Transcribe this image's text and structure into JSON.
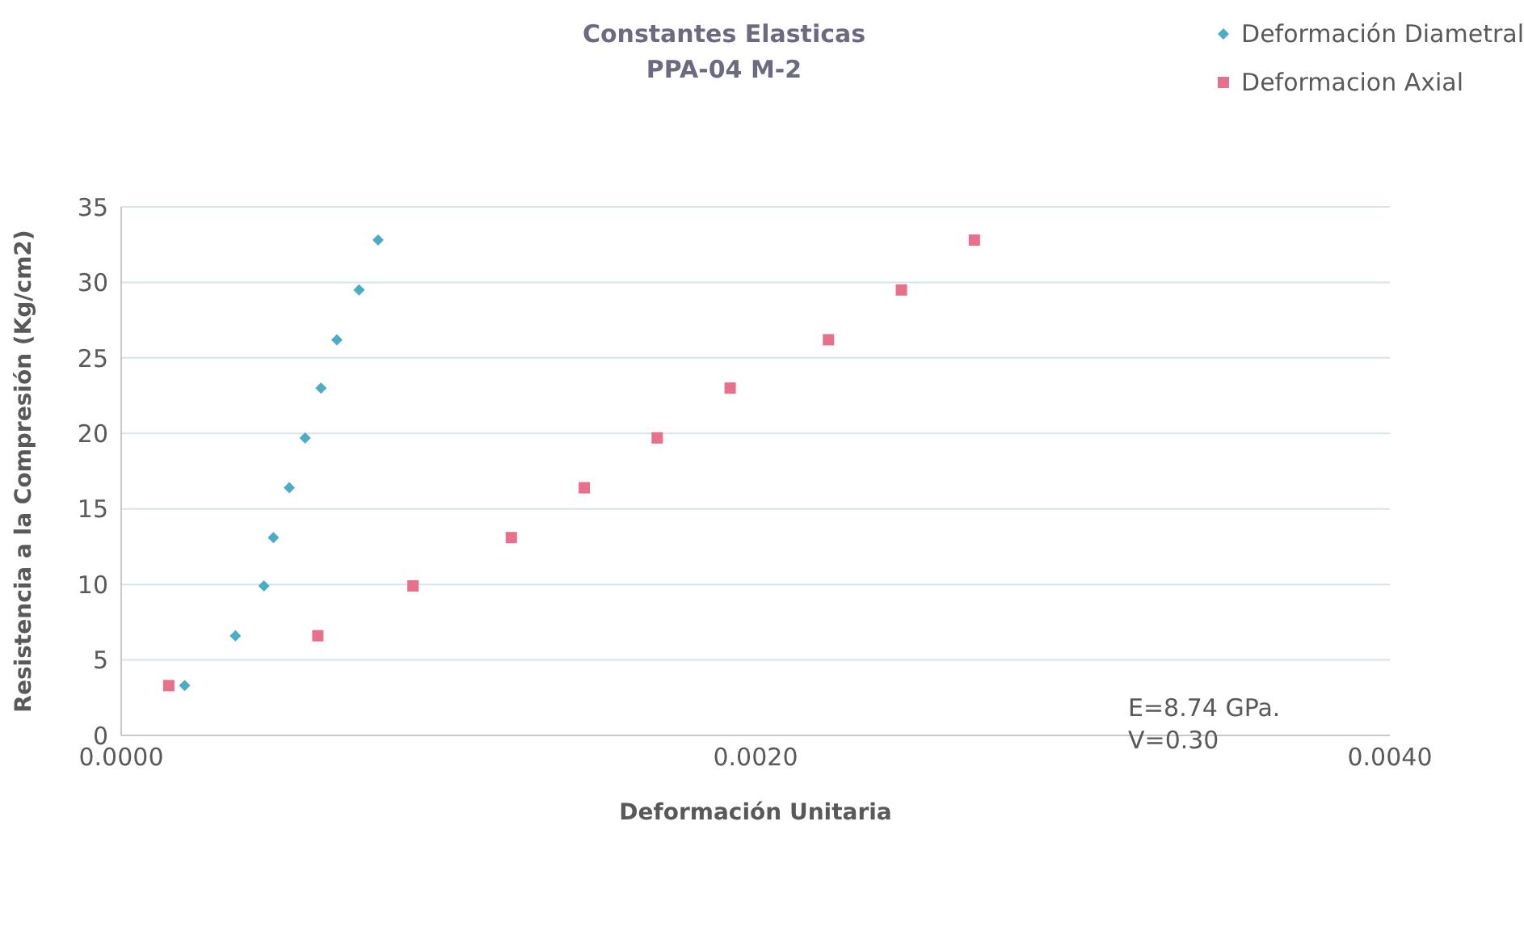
{
  "chart_data": {
    "type": "scatter",
    "title": "Constantes Elasticas",
    "subtitle": "PPA-04  M-2",
    "xlabel": "Deformación Unitaria",
    "ylabel": "Resistencia a la Compresión (Kg/cm2)",
    "series": [
      {
        "name": "Deformación Diametral",
        "color": "#4bacc6",
        "marker": "diamond",
        "x": [
          0.0002,
          0.00036,
          0.00045,
          0.00048,
          0.00053,
          0.00058,
          0.00063,
          0.00068,
          0.00075,
          0.00081
        ],
        "values": [
          3.3,
          6.6,
          9.9,
          13.1,
          16.4,
          19.7,
          23.0,
          26.2,
          29.5,
          32.8
        ]
      },
      {
        "name": "Deformacion Axial",
        "color": "#e8708a",
        "marker": "square",
        "x": [
          0.00015,
          0.00062,
          0.00092,
          0.00123,
          0.00146,
          0.00169,
          0.00192,
          0.00223,
          0.00246,
          0.00269
        ],
        "values": [
          3.3,
          6.6,
          9.9,
          13.1,
          16.4,
          19.7,
          23.0,
          26.2,
          29.5,
          32.8
        ]
      }
    ],
    "xlim": [
      0,
      0.004
    ],
    "xticks": [
      {
        "value": 0,
        "label": "0.0000"
      },
      {
        "value": 0.002,
        "label": "0.0020"
      },
      {
        "value": 0.004,
        "label": "0.0040"
      }
    ],
    "ylim": [
      0,
      35
    ],
    "yticks": [
      0,
      5,
      10,
      15,
      20,
      25,
      30,
      35
    ],
    "grid": "y",
    "legend": "top right",
    "annotations": [
      "E=8.74 GPa.",
      "V=0.30"
    ]
  }
}
